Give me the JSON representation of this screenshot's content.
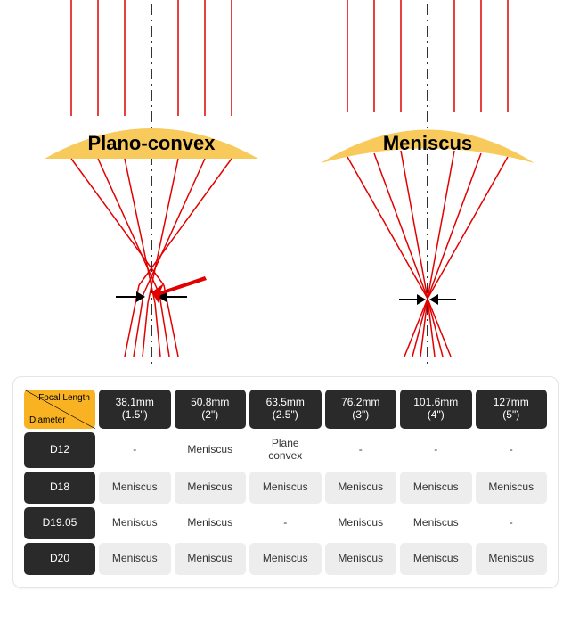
{
  "diagram": {
    "left_label": "Plano-convex",
    "right_label": "Meniscus",
    "lens_color": "#f8c95b",
    "ray_color": "#e20000",
    "axis_color": "#000000",
    "arrow_color": "#000000",
    "label_fontsize": 22,
    "left": {
      "type": "plano-convex",
      "top_curve": true,
      "bottom_flat": true,
      "focal_spread": "wide"
    },
    "right": {
      "type": "meniscus",
      "top_curve": true,
      "bottom_curve": true,
      "focal_spread": "tight"
    }
  },
  "table": {
    "corner_top": "Focal Length",
    "corner_bottom": "Diameter",
    "corner_bg": "#f9b322",
    "header_bg": "#2a2a2a",
    "header_fg": "#ffffff",
    "cell_grey": "#ededed",
    "cell_white": "#ffffff",
    "columns": [
      {
        "mm": "38.1mm",
        "in": "(1.5\")"
      },
      {
        "mm": "50.8mm",
        "in": "(2\")"
      },
      {
        "mm": "63.5mm",
        "in": "(2.5\")"
      },
      {
        "mm": "76.2mm",
        "in": "(3\")"
      },
      {
        "mm": "101.6mm",
        "in": "(4\")"
      },
      {
        "mm": "127mm",
        "in": "(5\")"
      }
    ],
    "rows": [
      {
        "head": "D12",
        "cells": [
          "-",
          "Meniscus",
          "Plane convex",
          "-",
          "-",
          "-"
        ]
      },
      {
        "head": "D18",
        "cells": [
          "Meniscus",
          "Meniscus",
          "Meniscus",
          "Meniscus",
          "Meniscus",
          "Meniscus"
        ]
      },
      {
        "head": "D19.05",
        "cells": [
          "Meniscus",
          "Meniscus",
          "-",
          "Meniscus",
          "Meniscus",
          "-"
        ]
      },
      {
        "head": "D20",
        "cells": [
          "Meniscus",
          "Meniscus",
          "Meniscus",
          "Meniscus",
          "Meniscus",
          "Meniscus"
        ]
      }
    ]
  }
}
